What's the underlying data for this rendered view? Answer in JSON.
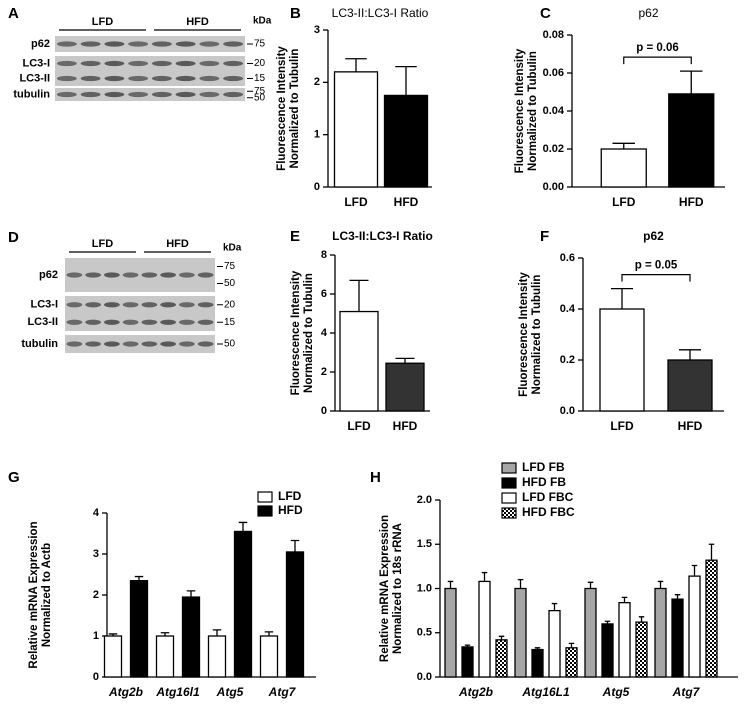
{
  "blots": [
    {
      "panel": "A",
      "groups": [
        "LFD",
        "HFD"
      ],
      "unit": "kDa",
      "rows": [
        {
          "labels": [
            "p62"
          ],
          "markers": [
            "75"
          ]
        },
        {
          "labels": [
            "LC3-I",
            "LC3-II"
          ],
          "markers": [
            "20",
            "15"
          ]
        },
        {
          "labels": [
            "tubulin"
          ],
          "markers": [
            "75",
            "50"
          ]
        }
      ]
    },
    {
      "panel": "D",
      "groups": [
        "LFD",
        "HFD"
      ],
      "unit": "kDa",
      "rows": [
        {
          "labels": [
            "p62"
          ],
          "markers": [
            "75",
            "50"
          ]
        },
        {
          "labels": [
            "LC3-I",
            "LC3-II"
          ],
          "markers": [
            "20",
            "15"
          ]
        },
        {
          "labels": [
            "tubulin"
          ],
          "markers": [
            "50"
          ]
        }
      ]
    }
  ],
  "chart_data": [
    {
      "type": "bar",
      "panel": "B",
      "title": "LC3-II:LC3-I Ratio",
      "ylabel": [
        "Fluorescence Intensity",
        "Normalized to Tubulin"
      ],
      "categories": [
        "LFD",
        "HFD"
      ],
      "values": [
        2.2,
        1.75
      ],
      "errors": [
        0.25,
        0.55
      ],
      "colors": [
        "#ffffff",
        "#000000"
      ],
      "ylim": [
        0,
        3
      ],
      "yticks": [
        0,
        1,
        2,
        3
      ]
    },
    {
      "type": "bar",
      "panel": "C",
      "title": "p62",
      "ylabel": [
        "Fluorescence Intensity",
        "Normalized to Tubulin"
      ],
      "categories": [
        "LFD",
        "HFD"
      ],
      "values": [
        0.02,
        0.049
      ],
      "errors": [
        0.003,
        0.012
      ],
      "colors": [
        "#ffffff",
        "#000000"
      ],
      "ylim": [
        0,
        0.08
      ],
      "yticks": [
        {
          "value": 0,
          "label": "0.00"
        },
        {
          "value": 0.02,
          "label": "0.02"
        },
        {
          "value": 0.04,
          "label": "0.04"
        },
        {
          "value": 0.06,
          "label": "0.06"
        },
        {
          "value": 0.08,
          "label": "0.08"
        }
      ],
      "annotation": "p = 0.06"
    },
    {
      "type": "bar",
      "panel": "E",
      "title": "LC3-II:LC3-I Ratio",
      "ylabel": [
        "Fluorescence Intensity",
        "Normalized to Tubulin"
      ],
      "categories": [
        "LFD",
        "HFD"
      ],
      "values": [
        5.1,
        2.45
      ],
      "errors": [
        1.6,
        0.25
      ],
      "colors": [
        "#ffffff",
        "#333333"
      ],
      "ylim": [
        0,
        8
      ],
      "yticks": [
        0,
        2,
        4,
        6,
        8
      ]
    },
    {
      "type": "bar",
      "panel": "F",
      "title": "p62",
      "ylabel": [
        "Fluorescence Intensity",
        "Normalized to Tubulin"
      ],
      "categories": [
        "LFD",
        "HFD"
      ],
      "values": [
        0.4,
        0.2
      ],
      "errors": [
        0.08,
        0.04
      ],
      "colors": [
        "#ffffff",
        "#333333"
      ],
      "ylim": [
        0,
        0.6
      ],
      "yticks": [
        {
          "value": 0,
          "label": "0.0"
        },
        {
          "value": 0.2,
          "label": "0.2"
        },
        {
          "value": 0.4,
          "label": "0.4"
        },
        {
          "value": 0.6,
          "label": "0.6"
        }
      ],
      "annotation": "p = 0.05"
    },
    {
      "type": "grouped-bar",
      "panel": "G",
      "ylabel": [
        "Relative mRNA Expression",
        "Normalized to Actb"
      ],
      "categories": [
        "Atg2b",
        "Atg16l1",
        "Atg5",
        "Atg7"
      ],
      "series": [
        {
          "name": "LFD",
          "color": "#ffffff",
          "values": [
            1,
            1,
            1,
            1
          ],
          "errors": [
            0.05,
            0.08,
            0.15,
            0.1
          ]
        },
        {
          "name": "HFD",
          "color": "#000000",
          "values": [
            2.35,
            1.95,
            3.55,
            3.05
          ],
          "errors": [
            0.1,
            0.15,
            0.22,
            0.28
          ]
        }
      ],
      "ylim": [
        0,
        4
      ],
      "yticks": [
        0,
        1,
        2,
        3,
        4
      ]
    },
    {
      "type": "grouped-bar",
      "panel": "H",
      "ylabel": [
        "Relative mRNA Expression",
        "Normalized to 18s rRNA"
      ],
      "categories": [
        "Atg2b",
        "Atg16L1",
        "Atg5",
        "Atg7"
      ],
      "series": [
        {
          "name": "LFD FB",
          "color": "#a6a6a6",
          "values": [
            1.0,
            1.0,
            1.0,
            1.0
          ],
          "errors": [
            0.08,
            0.1,
            0.07,
            0.08
          ]
        },
        {
          "name": "HFD FB",
          "color": "#000000",
          "values": [
            0.34,
            0.31,
            0.6,
            0.88
          ],
          "errors": [
            0.02,
            0.02,
            0.03,
            0.05
          ]
        },
        {
          "name": "LFD FBC",
          "color": "#ffffff",
          "values": [
            1.08,
            0.75,
            0.84,
            1.14
          ],
          "errors": [
            0.1,
            0.08,
            0.06,
            0.12
          ]
        },
        {
          "name": "HFD FBC",
          "color": "#000000",
          "pattern": "checkered",
          "values": [
            0.42,
            0.33,
            0.62,
            1.32
          ],
          "errors": [
            0.04,
            0.05,
            0.06,
            0.18
          ]
        }
      ],
      "ylim": [
        0,
        2.0
      ],
      "yticks": [
        {
          "value": 0,
          "label": "0.0"
        },
        {
          "value": 0.5,
          "label": "0.5"
        },
        {
          "value": 1.0,
          "label": "1.0"
        },
        {
          "value": 1.5,
          "label": "1.5"
        },
        {
          "value": 2.0,
          "label": "2.0"
        }
      ]
    }
  ]
}
